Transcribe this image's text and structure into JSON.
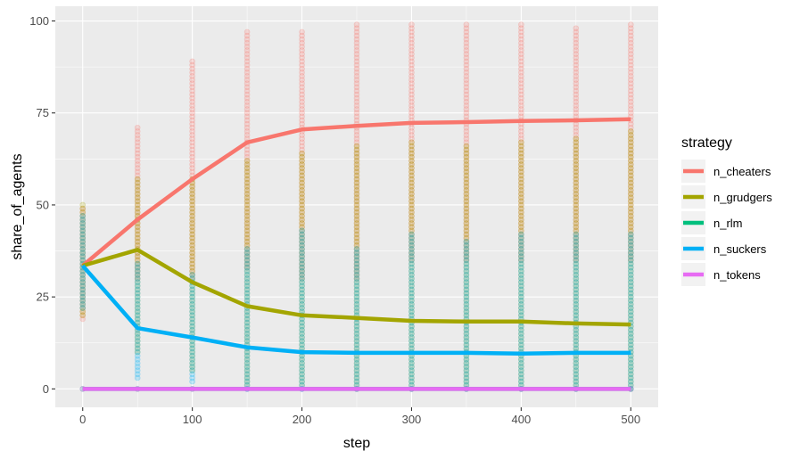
{
  "chart_data": {
    "type": "line",
    "xlabel": "step",
    "ylabel": "share_of_agents",
    "xlim": [
      -25,
      525
    ],
    "ylim": [
      -5,
      104
    ],
    "x_ticks": [
      0,
      100,
      200,
      300,
      400,
      500
    ],
    "y_ticks": [
      0,
      25,
      50,
      75,
      100
    ],
    "grid": true,
    "legend": {
      "title": "strategy",
      "position": "right"
    },
    "x": [
      0,
      50,
      100,
      150,
      200,
      250,
      300,
      350,
      400,
      450,
      500
    ],
    "series": [
      {
        "name": "n_cheaters",
        "color": "#F8766D",
        "values": [
          33.5,
          46,
          57,
          67,
          70.5,
          71.5,
          72.3,
          72.5,
          72.8,
          73,
          73.3
        ],
        "scatter_range": [
          [
            19,
            49
          ],
          [
            30,
            71
          ],
          [
            30,
            89
          ],
          [
            33,
            97
          ],
          [
            30,
            97
          ],
          [
            30,
            99
          ],
          [
            35,
            99
          ],
          [
            35,
            99
          ],
          [
            35,
            99
          ],
          [
            35,
            98
          ],
          [
            35,
            99
          ]
        ]
      },
      {
        "name": "n_grudgers",
        "color": "#A3A500",
        "values": [
          33.5,
          37.8,
          29,
          22.5,
          20,
          19.3,
          18.5,
          18.3,
          18.3,
          17.8,
          17.5
        ],
        "scatter_range": [
          [
            20,
            50
          ],
          [
            10,
            57
          ],
          [
            5,
            57
          ],
          [
            1,
            62
          ],
          [
            1,
            64
          ],
          [
            0,
            66
          ],
          [
            0,
            67
          ],
          [
            0,
            66
          ],
          [
            0,
            67
          ],
          [
            0,
            68
          ],
          [
            0,
            70
          ]
        ]
      },
      {
        "name": "n_rlm",
        "color": "#00BF7D",
        "values": [
          0,
          0,
          0,
          0,
          0,
          0,
          0,
          0,
          0,
          0,
          0
        ],
        "scatter_range": [
          [
            0,
            0
          ],
          [
            0,
            0
          ],
          [
            0,
            0
          ],
          [
            0,
            0
          ],
          [
            0,
            0
          ],
          [
            0,
            0
          ],
          [
            0,
            0
          ],
          [
            0,
            0
          ],
          [
            0,
            0
          ],
          [
            0,
            0
          ],
          [
            0,
            0
          ]
        ]
      },
      {
        "name": "n_suckers",
        "color": "#00B0F6",
        "values": [
          33.5,
          16.5,
          14,
          11.3,
          10,
          9.8,
          9.8,
          9.8,
          9.6,
          9.8,
          9.8
        ],
        "scatter_range": [
          [
            22,
            47
          ],
          [
            3,
            34
          ],
          [
            2,
            31
          ],
          [
            0,
            38
          ],
          [
            0,
            43
          ],
          [
            0,
            38
          ],
          [
            0,
            42
          ],
          [
            0,
            40
          ],
          [
            0,
            42
          ],
          [
            0,
            42
          ],
          [
            0,
            42
          ]
        ]
      },
      {
        "name": "n_tokens",
        "color": "#E76BF3",
        "values": [
          0,
          0,
          0,
          0,
          0,
          0,
          0,
          0,
          0,
          0,
          0
        ],
        "scatter_range": [
          [
            0,
            0
          ],
          [
            0,
            0
          ],
          [
            0,
            0
          ],
          [
            0,
            0
          ],
          [
            0,
            0
          ],
          [
            0,
            0
          ],
          [
            0,
            0
          ],
          [
            0,
            0
          ],
          [
            0,
            0
          ],
          [
            0,
            0
          ],
          [
            0,
            0
          ]
        ]
      }
    ]
  }
}
